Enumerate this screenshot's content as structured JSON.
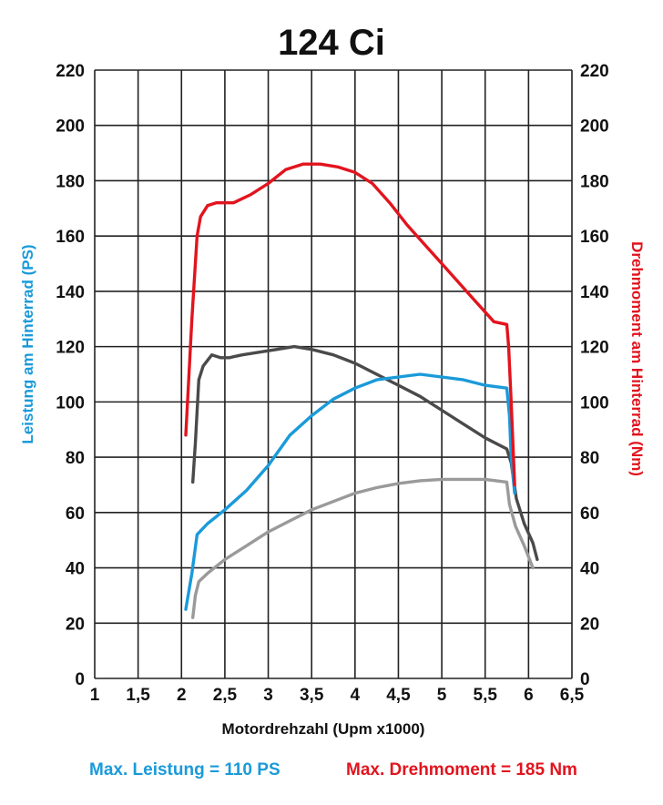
{
  "chart_data": {
    "type": "line",
    "title": "124 Ci",
    "xlabel": "Motordrehzahl (Upm x1000)",
    "ylabel_left": "Leistung am Hinterrad (PS)",
    "ylabel_right": "Drehmoment am Hinterrad (Nm)",
    "xlim": [
      1,
      6.5
    ],
    "ylim": [
      0,
      220
    ],
    "x_ticks": [
      1,
      1.5,
      2,
      2.5,
      3,
      3.5,
      4,
      4.5,
      5,
      5.5,
      6,
      6.5
    ],
    "x_tick_labels": [
      "1",
      "1,5",
      "2",
      "2,5",
      "3",
      "3,5",
      "4",
      "4,5",
      "5",
      "5,5",
      "6",
      "6,5"
    ],
    "y_ticks": [
      0,
      20,
      40,
      60,
      80,
      100,
      120,
      140,
      160,
      180,
      200,
      220
    ],
    "grid": true,
    "colors": {
      "power": "#1a9ad9",
      "torque": "#e2141e",
      "power_grey": "#9a9a9a",
      "torque_grey": "#4a4a4a",
      "grid": "#222222",
      "text": "#111111"
    },
    "series": [
      {
        "color": "#e2141e",
        "points": [
          [
            2.05,
            88
          ],
          [
            2.12,
            130
          ],
          [
            2.18,
            160
          ],
          [
            2.22,
            167
          ],
          [
            2.3,
            171
          ],
          [
            2.4,
            172
          ],
          [
            2.6,
            172
          ],
          [
            2.8,
            175
          ],
          [
            3.0,
            179
          ],
          [
            3.2,
            184
          ],
          [
            3.4,
            186
          ],
          [
            3.6,
            186
          ],
          [
            3.8,
            185
          ],
          [
            4.0,
            183
          ],
          [
            4.2,
            179
          ],
          [
            4.4,
            172
          ],
          [
            4.6,
            164
          ],
          [
            4.8,
            157
          ],
          [
            5.0,
            150
          ],
          [
            5.2,
            143
          ],
          [
            5.4,
            136
          ],
          [
            5.6,
            129
          ],
          [
            5.75,
            128
          ],
          [
            5.77,
            120
          ],
          [
            5.8,
            100
          ],
          [
            5.84,
            70
          ]
        ]
      },
      {
        "color": "#1a9ad9",
        "points": [
          [
            2.05,
            25
          ],
          [
            2.12,
            38
          ],
          [
            2.18,
            52
          ],
          [
            2.3,
            56
          ],
          [
            2.5,
            61
          ],
          [
            2.75,
            68
          ],
          [
            3.0,
            77
          ],
          [
            3.25,
            88
          ],
          [
            3.5,
            95
          ],
          [
            3.75,
            101
          ],
          [
            4.0,
            105
          ],
          [
            4.25,
            108
          ],
          [
            4.5,
            109
          ],
          [
            4.75,
            110
          ],
          [
            5.0,
            109
          ],
          [
            5.25,
            108
          ],
          [
            5.5,
            106
          ],
          [
            5.75,
            105
          ],
          [
            5.78,
            95
          ],
          [
            5.8,
            80
          ],
          [
            5.84,
            67
          ]
        ]
      },
      {
        "color": "#4a4a4a",
        "points": [
          [
            2.13,
            71
          ],
          [
            2.16,
            85
          ],
          [
            2.2,
            108
          ],
          [
            2.25,
            113
          ],
          [
            2.35,
            117
          ],
          [
            2.45,
            116
          ],
          [
            2.55,
            116
          ],
          [
            2.7,
            117
          ],
          [
            2.9,
            118
          ],
          [
            3.1,
            119
          ],
          [
            3.3,
            120
          ],
          [
            3.5,
            119
          ],
          [
            3.75,
            117
          ],
          [
            4.0,
            114
          ],
          [
            4.25,
            110
          ],
          [
            4.5,
            106
          ],
          [
            4.75,
            102
          ],
          [
            5.0,
            97
          ],
          [
            5.25,
            92
          ],
          [
            5.5,
            87
          ],
          [
            5.75,
            83
          ],
          [
            5.8,
            78
          ],
          [
            5.86,
            65
          ],
          [
            5.95,
            56
          ],
          [
            6.05,
            49
          ],
          [
            6.1,
            43
          ]
        ]
      },
      {
        "color": "#9a9a9a",
        "points": [
          [
            2.13,
            22
          ],
          [
            2.16,
            30
          ],
          [
            2.2,
            35
          ],
          [
            2.3,
            38
          ],
          [
            2.5,
            43
          ],
          [
            2.75,
            48
          ],
          [
            3.0,
            53
          ],
          [
            3.25,
            57
          ],
          [
            3.5,
            61
          ],
          [
            3.75,
            64
          ],
          [
            4.0,
            67
          ],
          [
            4.25,
            69
          ],
          [
            4.5,
            70.5
          ],
          [
            4.75,
            71.5
          ],
          [
            5.0,
            72
          ],
          [
            5.25,
            72
          ],
          [
            5.5,
            72
          ],
          [
            5.75,
            71
          ],
          [
            5.78,
            63
          ],
          [
            5.85,
            55
          ],
          [
            5.95,
            48
          ],
          [
            6.05,
            40
          ]
        ]
      }
    ]
  },
  "footer": {
    "left": "Max. Leistung = 110 PS",
    "right": "Max. Drehmoment = 185 Nm"
  }
}
